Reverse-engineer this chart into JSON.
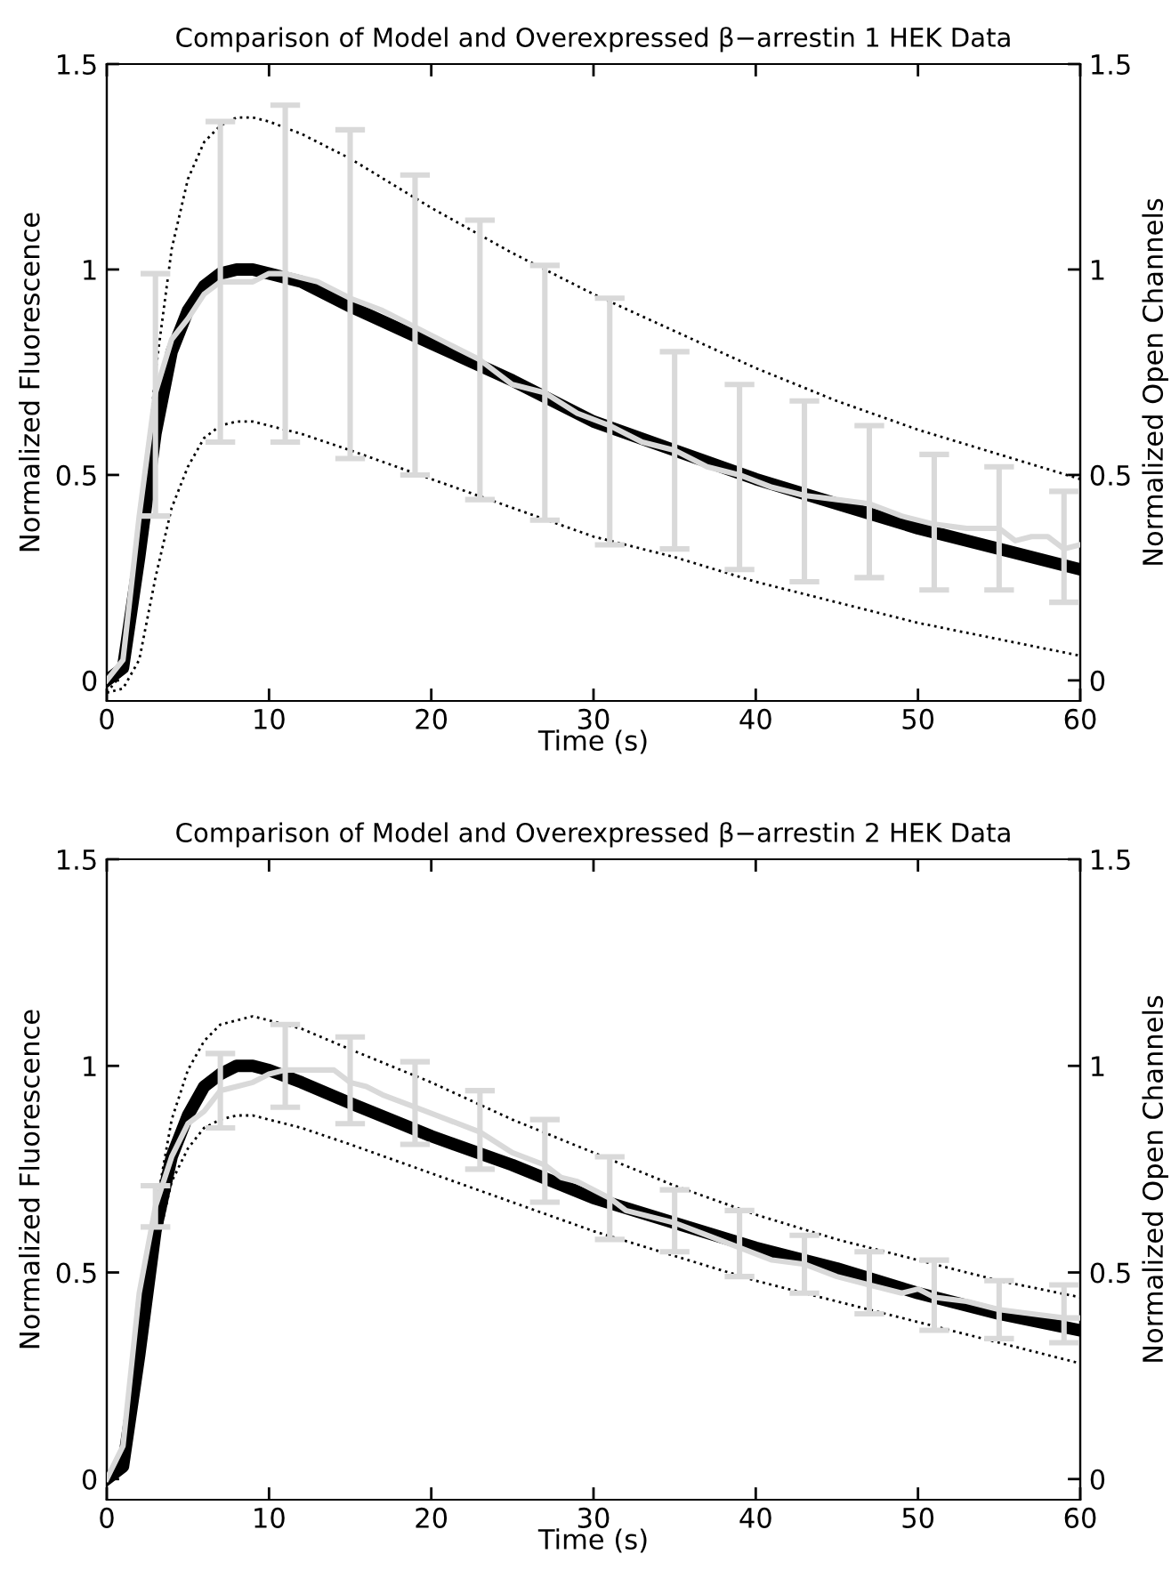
{
  "chart_data": [
    {
      "type": "line",
      "title": "Comparison of Model and Overexpressed β−arrestin 1 HEK Data",
      "xlabel": "Time (s)",
      "ylabel": "Normalized Fluorescence",
      "y2label": "Normalized Open Channels",
      "xlim": [
        0,
        60
      ],
      "xticks": [
        0,
        10,
        20,
        30,
        40,
        50,
        60
      ],
      "ylim": [
        -0.05,
        1.5
      ],
      "yticks": [
        0,
        0.5,
        1,
        1.5
      ],
      "y2lim": [
        -0.05,
        1.5
      ],
      "y2ticks": [
        0,
        0.5,
        1,
        1.5
      ],
      "grid": false,
      "series": [
        {
          "color": "#000000",
          "axis": "y2",
          "line_style": "dotted",
          "x": [
            0,
            1,
            2,
            3,
            4,
            5,
            6,
            7,
            8,
            9,
            10,
            12,
            15,
            20,
            25,
            30,
            35,
            40,
            45,
            50,
            55,
            60
          ],
          "values": [
            -0.03,
            0.02,
            0.3,
            0.75,
            1.05,
            1.22,
            1.31,
            1.35,
            1.37,
            1.37,
            1.36,
            1.33,
            1.27,
            1.15,
            1.04,
            0.94,
            0.85,
            0.76,
            0.68,
            0.61,
            0.55,
            0.49
          ]
        },
        {
          "color": "#000000",
          "axis": "y2",
          "line_style": "dotted",
          "x": [
            0,
            1,
            2,
            3,
            4,
            5,
            6,
            7,
            8,
            9,
            10,
            12,
            15,
            20,
            25,
            30,
            35,
            40,
            45,
            50,
            55,
            60
          ],
          "values": [
            -0.03,
            -0.02,
            0.05,
            0.25,
            0.42,
            0.52,
            0.59,
            0.62,
            0.63,
            0.63,
            0.62,
            0.6,
            0.56,
            0.49,
            0.42,
            0.35,
            0.3,
            0.24,
            0.19,
            0.14,
            0.1,
            0.06
          ]
        },
        {
          "color": "#000000",
          "axis": "y2",
          "line_style": "solid",
          "x": [
            0,
            1,
            2,
            3,
            4,
            5,
            6,
            7,
            8,
            9,
            10,
            12,
            15,
            20,
            25,
            30,
            35,
            40,
            45,
            50,
            55,
            60
          ],
          "values": [
            0,
            0.03,
            0.3,
            0.6,
            0.8,
            0.9,
            0.96,
            0.99,
            1.0,
            1.0,
            0.99,
            0.97,
            0.91,
            0.82,
            0.73,
            0.63,
            0.56,
            0.49,
            0.43,
            0.37,
            0.32,
            0.27
          ]
        },
        {
          "color": "#d9d9d9",
          "axis": "y",
          "line_style": "solid",
          "x": [
            0,
            1,
            2,
            3,
            4,
            5,
            6,
            7,
            8,
            9,
            10,
            11,
            12,
            13,
            15,
            17,
            19,
            21,
            23,
            25,
            27,
            29,
            31,
            33,
            35,
            37,
            39,
            41,
            43,
            45,
            47,
            49,
            51,
            53,
            55,
            56,
            57,
            58,
            59,
            60
          ],
          "values": [
            0,
            0.05,
            0.4,
            0.7,
            0.83,
            0.88,
            0.94,
            0.97,
            0.97,
            0.97,
            0.99,
            0.99,
            0.98,
            0.97,
            0.93,
            0.9,
            0.86,
            0.82,
            0.78,
            0.72,
            0.7,
            0.65,
            0.62,
            0.58,
            0.56,
            0.52,
            0.5,
            0.47,
            0.45,
            0.44,
            0.43,
            0.4,
            0.38,
            0.37,
            0.37,
            0.34,
            0.35,
            0.35,
            0.32,
            0.33
          ],
          "errors": [
            null,
            null,
            null,
            [
              0.4,
              0.99
            ],
            null,
            null,
            null,
            [
              0.58,
              1.36
            ],
            null,
            null,
            null,
            [
              0.58,
              1.4
            ],
            null,
            null,
            [
              0.54,
              1.34
            ],
            null,
            [
              0.5,
              1.23
            ],
            null,
            [
              0.44,
              1.12
            ],
            null,
            [
              0.39,
              1.01
            ],
            null,
            [
              0.33,
              0.93
            ],
            null,
            [
              0.32,
              0.8
            ],
            null,
            [
              0.27,
              0.72
            ],
            null,
            [
              0.24,
              0.68
            ],
            null,
            [
              0.25,
              0.62
            ],
            null,
            [
              0.22,
              0.55
            ],
            null,
            [
              0.22,
              0.52
            ],
            null,
            null,
            null,
            [
              0.19,
              0.46
            ],
            null
          ]
        }
      ]
    },
    {
      "type": "line",
      "title": "Comparison of Model and Overexpressed β−arrestin 2 HEK Data",
      "xlabel": "Time (s)",
      "ylabel": "Normalized Fluorescence",
      "y2label": "Normalized Open Channels",
      "xlim": [
        0,
        60
      ],
      "xticks": [
        0,
        10,
        20,
        30,
        40,
        50,
        60
      ],
      "ylim": [
        -0.05,
        1.5
      ],
      "yticks": [
        0,
        0.5,
        1,
        1.5
      ],
      "y2lim": [
        -0.05,
        1.5
      ],
      "y2ticks": [
        0,
        0.5,
        1,
        1.5
      ],
      "grid": false,
      "series": [
        {
          "color": "#000000",
          "axis": "y2",
          "line_style": "dotted",
          "x": [
            0,
            1,
            2,
            3,
            4,
            5,
            6,
            7,
            8,
            9,
            10,
            12,
            15,
            20,
            25,
            30,
            35,
            40,
            45,
            50,
            55,
            60
          ],
          "values": [
            0,
            0.03,
            0.3,
            0.65,
            0.87,
            0.99,
            1.06,
            1.1,
            1.11,
            1.12,
            1.11,
            1.09,
            1.04,
            0.96,
            0.87,
            0.79,
            0.71,
            0.64,
            0.58,
            0.53,
            0.48,
            0.44
          ]
        },
        {
          "color": "#000000",
          "axis": "y2",
          "line_style": "dotted",
          "x": [
            0,
            1,
            2,
            3,
            4,
            5,
            6,
            7,
            8,
            9,
            10,
            12,
            15,
            20,
            25,
            30,
            35,
            40,
            45,
            50,
            55,
            60
          ],
          "values": [
            0,
            0.02,
            0.25,
            0.55,
            0.72,
            0.8,
            0.85,
            0.87,
            0.88,
            0.88,
            0.87,
            0.85,
            0.81,
            0.74,
            0.67,
            0.6,
            0.54,
            0.48,
            0.43,
            0.38,
            0.33,
            0.28
          ]
        },
        {
          "color": "#000000",
          "axis": "y2",
          "line_style": "solid",
          "x": [
            0,
            1,
            2,
            3,
            4,
            5,
            6,
            7,
            8,
            9,
            10,
            12,
            15,
            20,
            25,
            30,
            35,
            40,
            45,
            50,
            55,
            60
          ],
          "values": [
            0,
            0.03,
            0.3,
            0.6,
            0.78,
            0.88,
            0.95,
            0.98,
            1.0,
            1.0,
            0.99,
            0.96,
            0.91,
            0.83,
            0.76,
            0.68,
            0.62,
            0.56,
            0.51,
            0.45,
            0.4,
            0.36
          ]
        },
        {
          "color": "#d9d9d9",
          "axis": "y",
          "line_style": "solid",
          "x": [
            0,
            1,
            2,
            3,
            4,
            5,
            6,
            7,
            8,
            9,
            10,
            11,
            12,
            13,
            14,
            15,
            16,
            17,
            19,
            21,
            23,
            25,
            27,
            28,
            29,
            31,
            32,
            35,
            37,
            39,
            41,
            43,
            45,
            47,
            49,
            50,
            51,
            53,
            55,
            57,
            59,
            60
          ],
          "values": [
            0,
            0.08,
            0.45,
            0.66,
            0.78,
            0.86,
            0.89,
            0.94,
            0.95,
            0.96,
            0.98,
            0.99,
            0.99,
            0.99,
            0.99,
            0.96,
            0.95,
            0.93,
            0.9,
            0.87,
            0.84,
            0.79,
            0.76,
            0.73,
            0.72,
            0.68,
            0.65,
            0.62,
            0.59,
            0.56,
            0.53,
            0.52,
            0.49,
            0.47,
            0.45,
            0.46,
            0.44,
            0.43,
            0.41,
            0.4,
            0.39,
            0.39
          ],
          "errors": [
            null,
            null,
            null,
            [
              0.61,
              0.71
            ],
            null,
            null,
            null,
            [
              0.85,
              1.03
            ],
            null,
            null,
            null,
            [
              0.9,
              1.1
            ],
            null,
            null,
            null,
            [
              0.86,
              1.07
            ],
            null,
            null,
            [
              0.81,
              1.01
            ],
            null,
            [
              0.75,
              0.94
            ],
            null,
            [
              0.67,
              0.87
            ],
            null,
            null,
            [
              0.58,
              0.78
            ],
            null,
            [
              0.55,
              0.7
            ],
            null,
            [
              0.49,
              0.65
            ],
            null,
            [
              0.45,
              0.59
            ],
            null,
            [
              0.4,
              0.55
            ],
            null,
            null,
            [
              0.36,
              0.53
            ],
            null,
            [
              0.34,
              0.48
            ],
            null,
            [
              0.33,
              0.47
            ],
            null
          ]
        }
      ]
    }
  ]
}
